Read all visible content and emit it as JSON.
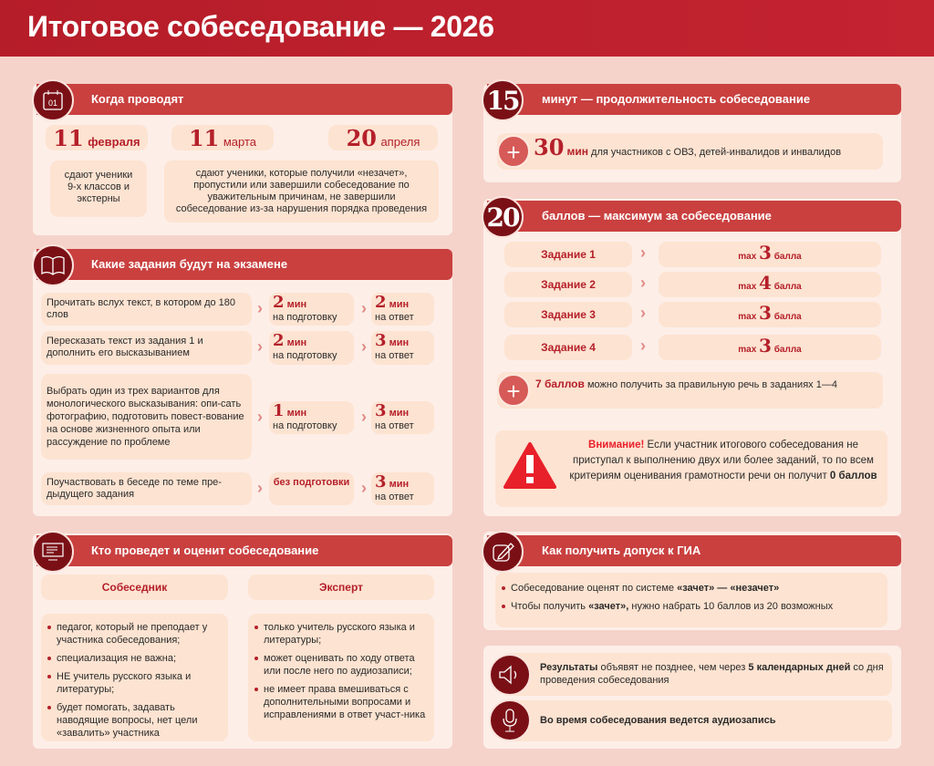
{
  "title": "Итоговое собеседование — 2026",
  "colors": {
    "accent": "#c9403f",
    "dark": "#7a1016",
    "text_red": "#b5202a",
    "bg": "#f5d3ca"
  },
  "when": {
    "header": "Когда проводят",
    "icon": "calendar-icon",
    "calendar_text": "01",
    "dates": [
      {
        "day": "11",
        "month": "февраля"
      },
      {
        "day": "11",
        "month": "марта"
      },
      {
        "day": "20",
        "month": "апреля"
      }
    ],
    "desc1": "сдают ученики 9-х классов и экстерны",
    "desc2": "сдают ученики, которые получили «незачет», пропустили или завершили собеседование по уважительным причинам, не завершили собеседование из-за нарушения порядка проведения"
  },
  "tasks": {
    "header": "Какие задания будут на экзамене",
    "icon": "book-icon",
    "rows": [
      {
        "text": "Прочитать вслух текст, в котором до 180 слов",
        "prep_num": "2",
        "prep_unit": "мин",
        "prep_label": "на подготовку",
        "ans_num": "2",
        "ans_unit": "мин",
        "ans_label": "на ответ"
      },
      {
        "text": "Пересказать текст из задания 1 и дополнить его высказыванием",
        "prep_num": "2",
        "prep_unit": "мин",
        "prep_label": "на подготовку",
        "ans_num": "3",
        "ans_unit": "мин",
        "ans_label": "на ответ"
      },
      {
        "text": "Выбрать один из трех вариантов для монологического высказывания: опи-сать фотографию, подготовить повест-вование на основе жизненного опыта или рассуждение по проблеме",
        "prep_num": "1",
        "prep_unit": "мин",
        "prep_label": "на подготовку",
        "ans_num": "3",
        "ans_unit": "мин",
        "ans_label": "на ответ"
      },
      {
        "text": "Поучаствовать в беседе по теме пре-дыдущего задания",
        "prep_text": "без подготовки",
        "ans_num": "3",
        "ans_unit": "мин",
        "ans_label": "на ответ"
      }
    ]
  },
  "who": {
    "header": "Кто проведет и оценит собеседование",
    "icon": "checklist-monitor-icon",
    "interlocutor": {
      "title": "Собеседник",
      "items": [
        "педагог, который не преподает у участника собеседования;",
        "специализация не важна;",
        "НЕ учитель русского языка и литературы;",
        "будет помогать, задавать наводящие вопросы, нет цели «завалить» участника"
      ]
    },
    "expert": {
      "title": "Эксперт",
      "items": [
        "только учитель русского языка и литературы;",
        "может оценивать по ходу ответа или после него по аудиозаписи;",
        "не имеет права вмешиваться с дополнительными вопросами и исправлениями в ответ участ-ника"
      ]
    }
  },
  "duration": {
    "num": "15",
    "header": "минут — продолжительность собеседование",
    "extra_num": "30",
    "extra_unit": "мин",
    "extra_text": "для участников с ОВЗ, детей-инвалидов и инвалидов"
  },
  "score": {
    "num": "20",
    "header": "баллов — максимум за собеседование",
    "rows": [
      {
        "task": "Задание 1",
        "max": "max",
        "points": "3",
        "unit": "балла"
      },
      {
        "task": "Задание 2",
        "max": "max",
        "points": "4",
        "unit": "балла"
      },
      {
        "task": "Задание 3",
        "max": "max",
        "points": "3",
        "unit": "балла"
      },
      {
        "task": "Задание 4",
        "max": "max",
        "points": "3",
        "unit": "балла"
      }
    ],
    "bonus_bold": "7 баллов",
    "bonus_text": "можно получить за правильную речь в заданиях 1—4",
    "warning_bold": "Внимание!",
    "warning_text": "Если участник итогового собеседования не приступал к выполнению двух или более заданий, то по всем критериям оценивания грамотности речи он получит",
    "warning_end": "0 баллов"
  },
  "admission": {
    "header": "Как получить допуск к ГИА",
    "icon": "pencil-edit-icon",
    "item1_a": "Собеседование оценят по системе",
    "item1_b": "«зачет» — «незачет»",
    "item2_a": "Чтобы получить",
    "item2_b": "«зачет»,",
    "item2_c": "нужно набрать 10 баллов из 20 возможных"
  },
  "results": {
    "icon": "speaker-icon",
    "bold1": "Результаты",
    "text1": "объявят не позднее, чем через",
    "bold2": "5 календарных дней",
    "text2": "со дня проведения собеседования"
  },
  "recording": {
    "icon": "microphone-icon",
    "text": "Во время собеседования ведется аудиозапись"
  }
}
